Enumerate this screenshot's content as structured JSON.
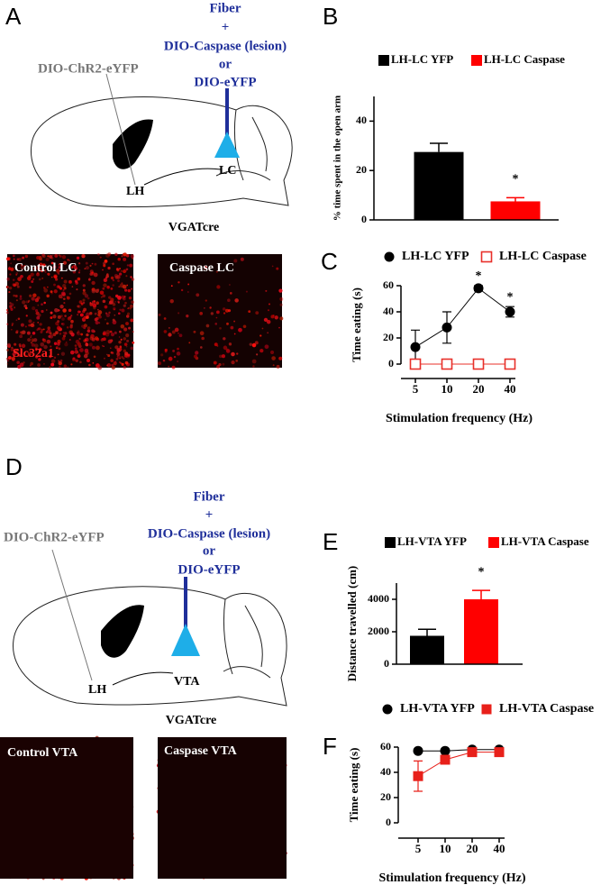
{
  "panels": {
    "A": {
      "letter": "A",
      "fiber": [
        "Fiber",
        "+",
        "DIO-Caspase (lesion)",
        "or",
        "DIO-eYFP"
      ],
      "virus": "DIO-ChR2-eYFP",
      "lh": "LH",
      "target": "LC",
      "mouse": "VGATcre",
      "images": [
        "Control LC",
        "Caspase LC"
      ],
      "marker": "Slc32a1"
    },
    "D": {
      "letter": "D",
      "fiber": [
        "Fiber",
        "+",
        "DIO-Caspase (lesion)",
        "or",
        "DIO-eYFP"
      ],
      "virus": "DIO-ChR2-eYFP",
      "lh": "LH",
      "target": "VTA",
      "mouse": "VGATcre",
      "images": [
        "Control VTA",
        "Caspase VTA"
      ]
    }
  },
  "chart_data": [
    {
      "type": "bar",
      "panel": "B",
      "ylabel": "% time spent in the open arm",
      "ylim": [
        0,
        50
      ],
      "yticks": [
        0,
        20,
        40
      ],
      "series": [
        {
          "name": "LH-LC YFP",
          "color": "#000000",
          "values": [
            27.5
          ],
          "errors": [
            3.5
          ]
        },
        {
          "name": "LH-LC Caspase",
          "color": "#ff0000",
          "values": [
            7.5
          ],
          "errors": [
            1.5
          ],
          "significance": [
            "*"
          ]
        }
      ]
    },
    {
      "type": "line",
      "panel": "C",
      "ylabel": "Time eating (s)",
      "xlabel": "Stimulation frequency (Hz)",
      "categories": [
        "5",
        "10",
        "20",
        "40"
      ],
      "ylim": [
        0,
        60
      ],
      "yticks": [
        0,
        20,
        40,
        60
      ],
      "series": [
        {
          "name": "LH-LC YFP",
          "color": "#000000",
          "marker": "circle",
          "values": [
            13,
            28,
            58,
            40
          ],
          "errors": [
            13,
            12,
            2,
            4
          ],
          "significance": [
            null,
            null,
            "*",
            "*"
          ]
        },
        {
          "name": "LH-LC Caspase",
          "color": "#e8302a",
          "marker": "open-square",
          "values": [
            0,
            0,
            0,
            0
          ]
        }
      ]
    },
    {
      "type": "bar",
      "panel": "E",
      "ylabel": "Distance travelled (cm)",
      "ylim": [
        0,
        5000
      ],
      "yticks": [
        0,
        2000,
        4000
      ],
      "series": [
        {
          "name": "LH-VTA YFP",
          "color": "#000000",
          "values": [
            1750
          ],
          "errors": [
            400
          ]
        },
        {
          "name": "LH-VTA Caspase",
          "color": "#ff0000",
          "values": [
            4000
          ],
          "errors": [
            550
          ],
          "significance": [
            "*"
          ]
        }
      ]
    },
    {
      "type": "line",
      "panel": "F",
      "ylabel": "Time eating (s)",
      "xlabel": "Stimulation frequency (Hz)",
      "categories": [
        "5",
        "10",
        "20",
        "40"
      ],
      "ylim": [
        0,
        60
      ],
      "yticks": [
        0,
        20,
        40,
        60
      ],
      "series": [
        {
          "name": "LH-VTA YFP",
          "color": "#000000",
          "marker": "circle",
          "values": [
            57,
            57,
            58,
            58
          ],
          "errors": [
            1,
            1,
            1,
            1
          ]
        },
        {
          "name": "LH-VTA Caspase",
          "color": "#e8201a",
          "marker": "square",
          "values": [
            37,
            50,
            56,
            56
          ],
          "errors": [
            12,
            3,
            2,
            2
          ]
        }
      ]
    }
  ]
}
